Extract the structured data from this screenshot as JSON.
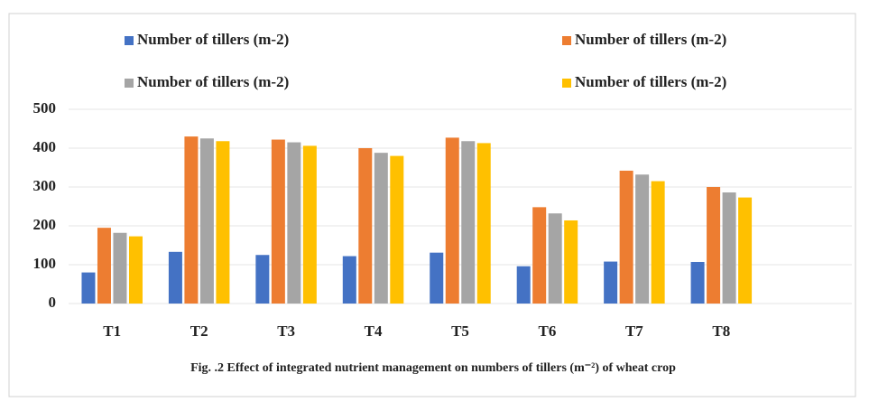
{
  "chart_data": {
    "type": "bar",
    "caption": "Fig. .2 Effect of integrated nutrient management on numbers of tillers (m⁻²) of wheat crop",
    "categories": [
      "T1",
      "T2",
      "T3",
      "T4",
      "T5",
      "T6",
      "T7",
      "T8",
      null
    ],
    "series": [
      {
        "name": "Number of tillers (m-2)",
        "color": "#4472c4",
        "values": [
          80,
          133,
          125,
          122,
          131,
          96,
          108,
          107,
          null
        ]
      },
      {
        "name": "Number of tillers (m-2)",
        "color": "#ed7d31",
        "values": [
          195,
          430,
          422,
          400,
          427,
          248,
          342,
          300,
          null
        ]
      },
      {
        "name": "Number of tillers (m-2)",
        "color": "#a5a5a5",
        "values": [
          182,
          425,
          415,
          388,
          418,
          232,
          332,
          286,
          null
        ]
      },
      {
        "name": "Number of tillers (m-2)",
        "color": "#ffc000",
        "values": [
          173,
          418,
          406,
          380,
          413,
          214,
          315,
          273,
          null
        ]
      }
    ],
    "ylim": [
      0,
      500
    ],
    "yticks": [
      0,
      100,
      200,
      300,
      400,
      500
    ],
    "grid": true,
    "legend": "top"
  }
}
